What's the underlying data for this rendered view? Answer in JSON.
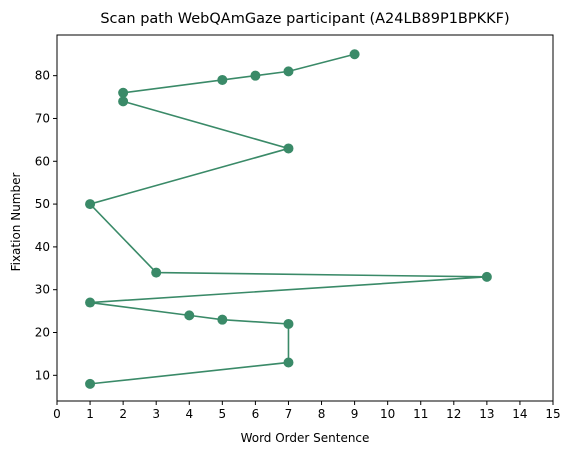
{
  "chart_data": {
    "type": "line",
    "title": "Scan path WebQAmGaze participant (A24LB89P1BPKKF)",
    "xlabel": "Word Order Sentence",
    "ylabel": "Fixation Number",
    "xlim": [
      0,
      15
    ],
    "ylim": [
      4,
      89.5
    ],
    "xticks": [
      0,
      1,
      2,
      3,
      4,
      5,
      6,
      7,
      8,
      9,
      10,
      11,
      12,
      13,
      14,
      15
    ],
    "yticks": [
      10,
      20,
      30,
      40,
      50,
      60,
      70,
      80
    ],
    "grid": false,
    "color": "#3a8a68",
    "points": [
      {
        "x": 1,
        "y": 8
      },
      {
        "x": 7,
        "y": 13
      },
      {
        "x": 7,
        "y": 22
      },
      {
        "x": 5,
        "y": 23
      },
      {
        "x": 4,
        "y": 24
      },
      {
        "x": 1,
        "y": 27
      },
      {
        "x": 13,
        "y": 33
      },
      {
        "x": 3,
        "y": 34
      },
      {
        "x": 1,
        "y": 50
      },
      {
        "x": 7,
        "y": 63
      },
      {
        "x": 2,
        "y": 74
      },
      {
        "x": 2,
        "y": 76
      },
      {
        "x": 5,
        "y": 79
      },
      {
        "x": 6,
        "y": 80
      },
      {
        "x": 7,
        "y": 81
      },
      {
        "x": 9,
        "y": 85
      }
    ]
  }
}
